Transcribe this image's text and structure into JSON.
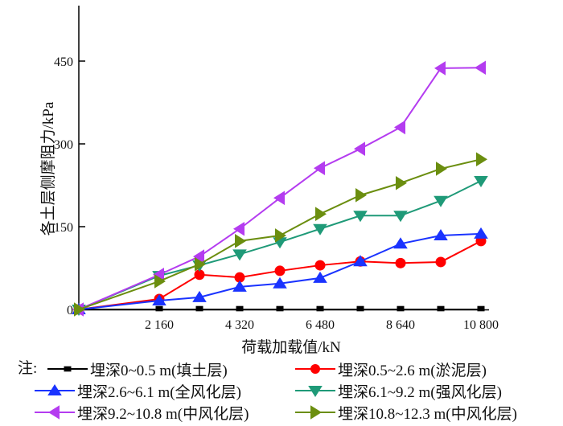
{
  "chart_data": {
    "type": "line",
    "title": "",
    "xlabel": "荷载加载值/kN",
    "ylabel": "各土层侧摩阻力/kPa",
    "xlim": [
      0,
      10800
    ],
    "ylim": [
      0,
      560
    ],
    "x_ticks": [
      2160,
      4320,
      6480,
      8640,
      10800
    ],
    "x_tick_labels": [
      "2 160",
      "4 320",
      "6 480",
      "8 640",
      "10 800"
    ],
    "y_ticks": [
      0,
      150,
      300,
      450
    ],
    "y_tick_labels": [
      "0",
      "150",
      "300",
      "450"
    ],
    "grid": false,
    "legend_placement": "bottom",
    "legend_note": "注:",
    "x": [
      0,
      2160,
      3240,
      4320,
      5400,
      6480,
      7560,
      8640,
      9720,
      10800
    ],
    "series": [
      {
        "name": "埋深0~0.5 m(填土层)",
        "color": "#000000",
        "marker": "square",
        "values": [
          0,
          0,
          0,
          0,
          0,
          0,
          0,
          0,
          0,
          0
        ]
      },
      {
        "name": "埋深0.5~2.6 m(淤泥层)",
        "color": "#ff0000",
        "marker": "circle",
        "values": [
          0,
          19,
          63,
          58,
          70,
          80,
          87,
          84,
          86,
          124
        ]
      },
      {
        "name": "埋深2.6~6.1 m(全风化层)",
        "color": "#1a33ff",
        "marker": "triangle-up",
        "values": [
          0,
          16,
          22,
          41,
          47,
          57,
          87,
          119,
          134,
          137
        ]
      },
      {
        "name": "埋深6.1~9.2 m(强风化层)",
        "color": "#1f9a78",
        "marker": "triangle-down",
        "values": [
          0,
          61,
          80,
          100,
          122,
          146,
          170,
          170,
          197,
          233
        ]
      },
      {
        "name": "埋深9.2~10.8 m(中风化层)",
        "color": "#b43cf0",
        "marker": "triangle-left",
        "values": [
          0,
          63,
          96,
          146,
          202,
          256,
          291,
          330,
          437,
          438
        ]
      },
      {
        "name": "埋深10.8~12.3 m(中风化层)",
        "color": "#6b8e0f",
        "marker": "triangle-right",
        "values": [
          0,
          51,
          82,
          124,
          134,
          173,
          207,
          229,
          255,
          272
        ]
      }
    ]
  }
}
